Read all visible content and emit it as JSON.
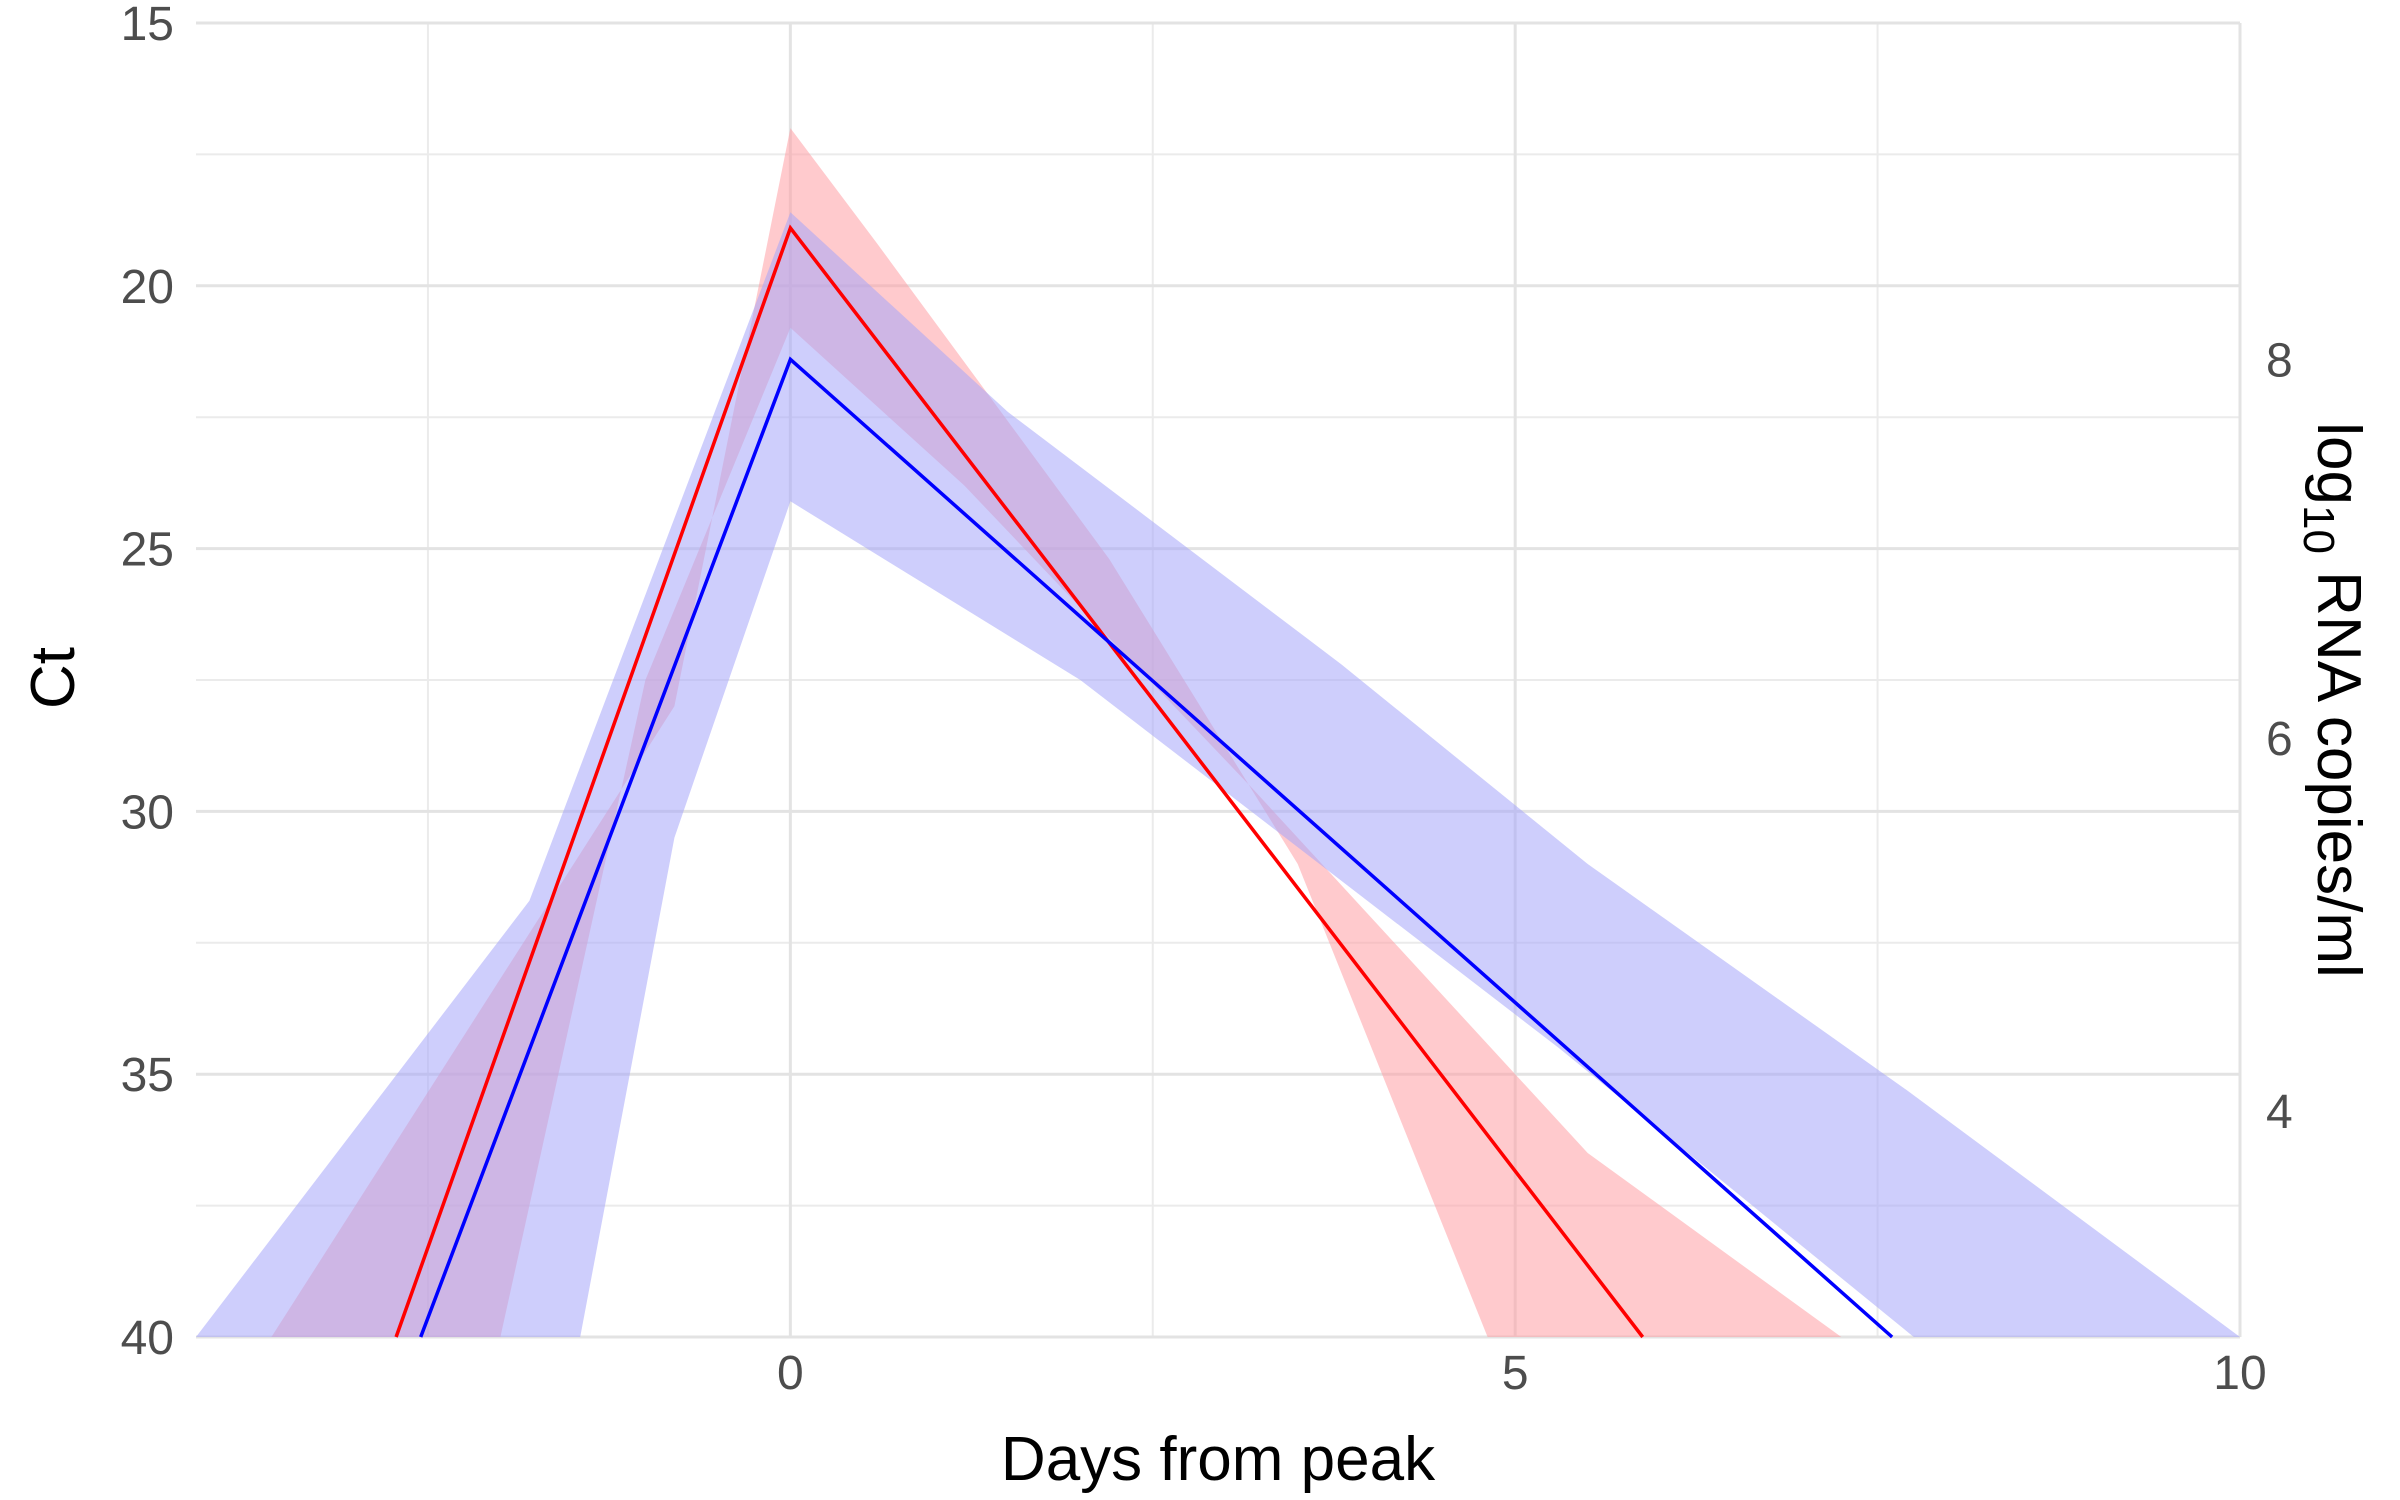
{
  "chart_data": {
    "type": "line",
    "xlabel": "Days from peak",
    "ylabel": "Ct",
    "y2label_parts": {
      "pre": "log",
      "sub": "10",
      "post": " RNA copies/ml"
    },
    "xlim": [
      -4.1,
      10.0
    ],
    "ylim": [
      15,
      40
    ],
    "y_reversed": true,
    "x_ticks": [
      0,
      5,
      10
    ],
    "x_tick_labels": [
      "0",
      "5",
      "10"
    ],
    "y_ticks": [
      15,
      20,
      25,
      30,
      35,
      40
    ],
    "y_tick_labels": [
      "15",
      "20",
      "25",
      "30",
      "35",
      "40"
    ],
    "y2_ticks": [
      21.4,
      28.6,
      35.7
    ],
    "y2_tick_labels": [
      "8",
      "6",
      "4"
    ],
    "grid": true,
    "colors": {
      "red_line": "#ff0000",
      "red_band": "#ff9fa4",
      "blue_line": "#0000ff",
      "blue_band": "#a5a5fa"
    },
    "series": [
      {
        "line": [
          [
            -2.72,
            40
          ],
          [
            0,
            18.9
          ],
          [
            5.88,
            40
          ]
        ],
        "band": [
          [
            -3.58,
            40
          ],
          [
            -0.8,
            28
          ],
          [
            0,
            17.0
          ],
          [
            0.6,
            19.2
          ],
          [
            2.2,
            25.2
          ],
          [
            3.5,
            31.0
          ],
          [
            4.81,
            40
          ],
          [
            7.25,
            40
          ],
          [
            5.5,
            36.5
          ],
          [
            3.2,
            29.6
          ],
          [
            1.2,
            23.8
          ],
          [
            0,
            20.8
          ],
          [
            -1.0,
            27.5
          ],
          [
            -2.0,
            40
          ]
        ]
      },
      {
        "line": [
          [
            -2.55,
            40
          ],
          [
            0,
            21.4
          ],
          [
            7.6,
            40
          ]
        ],
        "band": [
          [
            -4.1,
            40
          ],
          [
            -1.8,
            31.7
          ],
          [
            0,
            18.6
          ],
          [
            1.5,
            22.4
          ],
          [
            3.8,
            27.2
          ],
          [
            5.5,
            31.0
          ],
          [
            7.7,
            35.3
          ],
          [
            10.0,
            40
          ],
          [
            7.75,
            40
          ],
          [
            5.3,
            34.5
          ],
          [
            2.0,
            27.5
          ],
          [
            0,
            24.1
          ],
          [
            -0.3,
            26.5
          ],
          [
            -0.8,
            30.5
          ],
          [
            -1.45,
            40
          ]
        ]
      }
    ]
  }
}
